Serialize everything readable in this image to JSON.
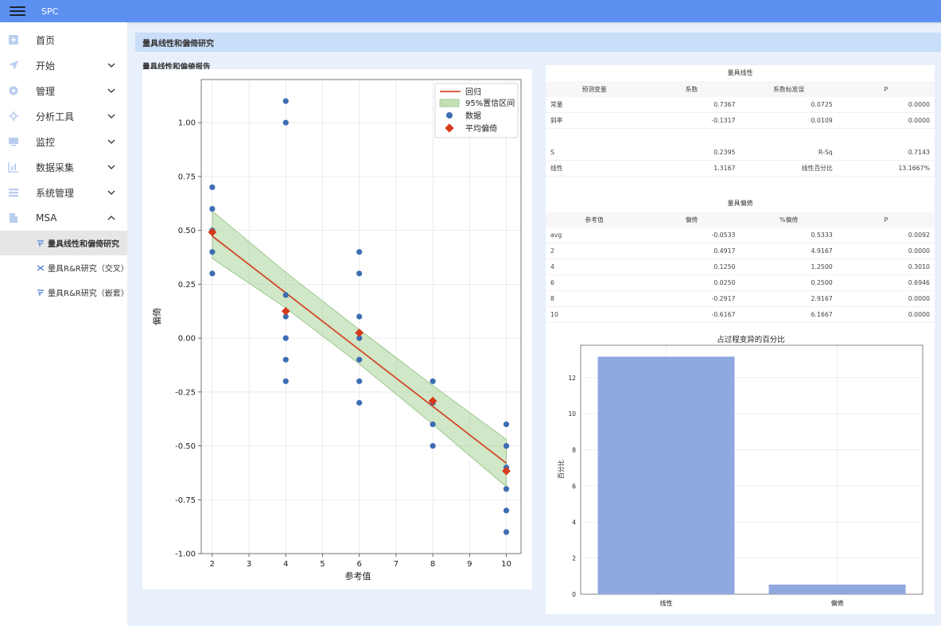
{
  "app": {
    "title": "SPC"
  },
  "sidebar": {
    "items": [
      {
        "label": "首页",
        "icon": "home-icon",
        "expandable": false
      },
      {
        "label": "开始",
        "icon": "send-icon",
        "expandable": true
      },
      {
        "label": "管理",
        "icon": "gear-icon",
        "expandable": true
      },
      {
        "label": "分析工具",
        "icon": "settings-icon",
        "expandable": true
      },
      {
        "label": "监控",
        "icon": "monitor-icon",
        "expandable": true
      },
      {
        "label": "数据采集",
        "icon": "chart-icon",
        "expandable": true
      },
      {
        "label": "系统管理",
        "icon": "list-icon",
        "expandable": true
      },
      {
        "label": "MSA",
        "icon": "building-icon",
        "expandable": true,
        "expanded": true
      }
    ],
    "sub_items": [
      {
        "label": "量具线性和偏倚研究",
        "icon": "sort-icon",
        "active": true
      },
      {
        "label": "量具R&R研究（交叉）",
        "icon": "shuffle-icon",
        "active": false
      },
      {
        "label": "量具R&R研究（嵌套）",
        "icon": "sort-icon",
        "active": false
      }
    ]
  },
  "page": {
    "header": "量具线性和偏倚研究",
    "section_title": "量具线性和偏倚报告"
  },
  "linearity": {
    "title": "量具线性",
    "headers": [
      "预测变量",
      "系数",
      "系数标准误",
      "P"
    ],
    "rows": [
      [
        "常量",
        "0.7367",
        "0.0725",
        "0.0000"
      ],
      [
        "斜率",
        "-0.1317",
        "0.0109",
        "0.0000"
      ]
    ],
    "summary": [
      [
        "S",
        "0.2395",
        "R-Sq",
        "0.7143"
      ],
      [
        "线性",
        "1.3167",
        "线性百分比",
        "13.1667%"
      ]
    ]
  },
  "bias": {
    "title": "量具偏倚",
    "headers": [
      "参考值",
      "偏倚",
      "%偏倚",
      "P"
    ],
    "rows": [
      [
        "avg",
        "-0.0533",
        "0.5333",
        "0.0092"
      ],
      [
        "2",
        "0.4917",
        "4.9167",
        "0.0000"
      ],
      [
        "4",
        "0.1250",
        "1.2500",
        "0.3010"
      ],
      [
        "6",
        "0.0250",
        "0.2500",
        "0.6946"
      ],
      [
        "8",
        "-0.2917",
        "2.9167",
        "0.0000"
      ],
      [
        "10",
        "-0.6167",
        "6.1667",
        "0.0000"
      ]
    ]
  },
  "chart_data": [
    {
      "type": "scatter",
      "xlabel": "参考值",
      "ylabel": "偏倚",
      "xlim": [
        1.7,
        10.4
      ],
      "ylim": [
        -1.0,
        1.2
      ],
      "xticks": [
        "2",
        "3",
        "4",
        "5",
        "6",
        "7",
        "8",
        "9",
        "10"
      ],
      "yticks": [
        "1.00",
        "0.75",
        "0.50",
        "0.25",
        "0.00",
        "-0.25",
        "-0.50",
        "-0.75",
        "-1.00"
      ],
      "grid": true,
      "legend": "top-right",
      "legend_entries": [
        "回归",
        "95%置信区间",
        "数据",
        "平均偏倚"
      ],
      "data_points": [
        [
          2,
          0.7
        ],
        [
          2,
          0.6
        ],
        [
          2,
          0.5
        ],
        [
          2,
          0.4
        ],
        [
          2,
          0.3
        ],
        [
          4,
          1.1
        ],
        [
          4,
          1.0
        ],
        [
          4,
          0.2
        ],
        [
          4,
          0.1
        ],
        [
          4,
          0.0
        ],
        [
          4,
          -0.1
        ],
        [
          4,
          -0.2
        ],
        [
          6,
          0.4
        ],
        [
          6,
          0.3
        ],
        [
          6,
          0.1
        ],
        [
          6,
          0.0
        ],
        [
          6,
          -0.1
        ],
        [
          6,
          -0.2
        ],
        [
          6,
          -0.3
        ],
        [
          8,
          -0.2
        ],
        [
          8,
          -0.3
        ],
        [
          8,
          -0.4
        ],
        [
          8,
          -0.5
        ],
        [
          10,
          -0.4
        ],
        [
          10,
          -0.5
        ],
        [
          10,
          -0.6
        ],
        [
          10,
          -0.7
        ],
        [
          10,
          -0.8
        ],
        [
          10,
          -0.9
        ]
      ],
      "mean_bias": [
        [
          2,
          0.4917
        ],
        [
          4,
          0.125
        ],
        [
          6,
          0.025
        ],
        [
          8,
          -0.2917
        ],
        [
          10,
          -0.6167
        ]
      ],
      "regression": {
        "intercept": 0.7367,
        "slope": -0.1317
      },
      "ci_band": [
        [
          2,
          0.59,
          0.37
        ],
        [
          4,
          0.305,
          0.14
        ],
        [
          6,
          0.04,
          -0.12
        ],
        [
          8,
          -0.22,
          -0.4
        ],
        [
          10,
          -0.47,
          -0.69
        ]
      ],
      "colors": {
        "regression": "#d2492a",
        "ci": "#a9d49a",
        "data": "#3d6eb3",
        "mean": "#d43a1a"
      }
    },
    {
      "type": "bar",
      "title": "占过程变异的百分比",
      "ylabel": "百分比",
      "categories": [
        "线性",
        "偏倚"
      ],
      "values": [
        13.1667,
        0.5333
      ],
      "ylim": [
        0,
        13.8
      ],
      "yticks": [
        "0",
        "2",
        "4",
        "6",
        "8",
        "10",
        "12"
      ],
      "grid": true,
      "colors": {
        "bar": "#8fa8e0"
      }
    }
  ]
}
